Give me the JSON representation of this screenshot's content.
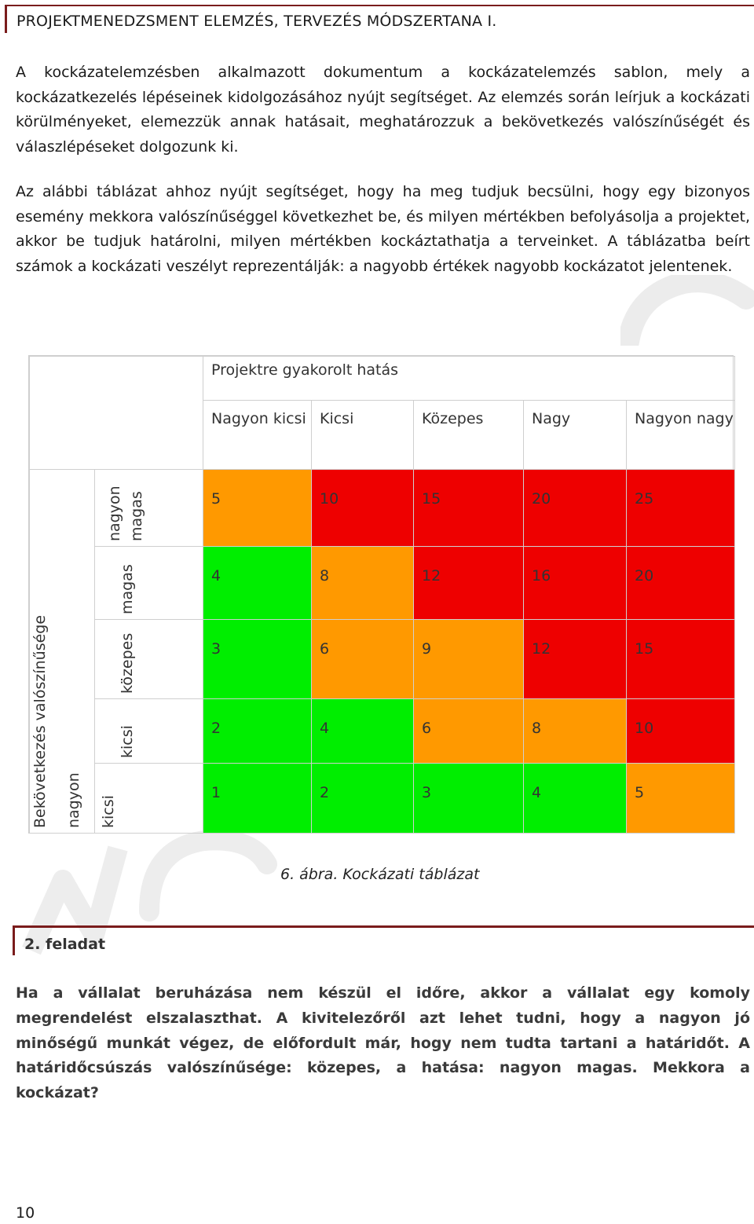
{
  "header": {
    "title": "PROJEKTMENEDZSMENT ELEMZÉS, TERVEZÉS MÓDSZERTANA I."
  },
  "paragraphs": [
    "A kockázatelemzésben alkalmazott dokumentum a kockázatelemzés sablon, mely a kockázatkezelés lépéseinek kidolgozásához nyújt segítséget. Az elemzés során leírjuk a kockázati körülményeket, elemezzük annak hatásait, meghatározzuk a bekövetkezés valószínűségét és válaszlépéseket dolgozunk ki.",
    "Az alábbi táblázat ahhoz nyújt segítséget, hogy ha meg tudjuk becsülni, hogy egy bizonyos esemény mekkora valószínűséggel következhet be, és milyen mértékben befolyásolja a projektet, akkor be tudjuk határolni, milyen mértékben kockáztathatja a terveinket. A táblázatba beírt számok a kockázati veszélyt reprezentálják: a nagyobb értékek nagyobb kockázatot jelentenek."
  ],
  "risk_table": {
    "impact_title": "Projektre gyakorolt hatás",
    "impact_levels": [
      "Nagyon kicsi",
      "Kicsi",
      "Közepes",
      "Nagy",
      "Nagyon nagy"
    ],
    "probability_title": "Bekövetkezés valószínűsége",
    "probability_levels": [
      "nagyon magas",
      "magas",
      "közepes",
      "kicsi",
      "nagyon kicsi"
    ],
    "rows": [
      [
        {
          "v": "5",
          "c": "o"
        },
        {
          "v": "10",
          "c": "r"
        },
        {
          "v": "15",
          "c": "r"
        },
        {
          "v": "20",
          "c": "r"
        },
        {
          "v": "25",
          "c": "r"
        }
      ],
      [
        {
          "v": "4",
          "c": "g"
        },
        {
          "v": "8",
          "c": "o"
        },
        {
          "v": "12",
          "c": "r"
        },
        {
          "v": "16",
          "c": "r"
        },
        {
          "v": "20",
          "c": "r"
        }
      ],
      [
        {
          "v": "3",
          "c": "g"
        },
        {
          "v": "6",
          "c": "o"
        },
        {
          "v": "9",
          "c": "o"
        },
        {
          "v": "12",
          "c": "r"
        },
        {
          "v": "15",
          "c": "r"
        }
      ],
      [
        {
          "v": "2",
          "c": "g"
        },
        {
          "v": "4",
          "c": "g"
        },
        {
          "v": "6",
          "c": "o"
        },
        {
          "v": "8",
          "c": "o"
        },
        {
          "v": "10",
          "c": "r"
        }
      ],
      [
        {
          "v": "1",
          "c": "g"
        },
        {
          "v": "2",
          "c": "g"
        },
        {
          "v": "3",
          "c": "g"
        },
        {
          "v": "4",
          "c": "g"
        },
        {
          "v": "5",
          "c": "o"
        }
      ]
    ],
    "colors": {
      "g": "#00ee00",
      "o": "#ff9900",
      "r": "#ee0000"
    }
  },
  "caption": "6. ábra. Kockázati táblázat",
  "task": {
    "heading": "2. feladat",
    "text": "Ha a vállalat beruházása nem készül el időre, akkor a vállalat egy komoly megrendelést elszalaszthat. A kivitelezőről azt lehet tudni, hogy a nagyon jó minőségű munkát végez, de előfordult már, hogy nem tudta tartani a határidőt. A határidőcsúszás valószínűsége: közepes, a hatása: nagyon magas. Mekkora a kockázat?"
  },
  "page_number": "10"
}
